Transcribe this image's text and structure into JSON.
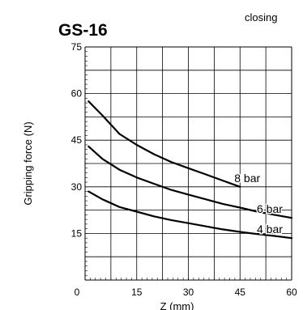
{
  "chart_data": {
    "type": "line",
    "title": "GS-16",
    "subtitle": "closing",
    "xlabel": "Z (mm)",
    "ylabel": "Gripping force (N)",
    "xlim": [
      0,
      60
    ],
    "ylim": [
      0,
      75
    ],
    "x_ticks": [
      0,
      15,
      30,
      45,
      60
    ],
    "y_ticks": [
      15,
      30,
      45,
      60,
      75
    ],
    "grid": true,
    "series": [
      {
        "name": "8 bar",
        "points": [
          [
            1,
            57.5
          ],
          [
            5,
            53
          ],
          [
            10,
            47
          ],
          [
            15,
            43.5
          ],
          [
            20,
            40.5
          ],
          [
            25,
            38
          ],
          [
            30,
            36
          ],
          [
            35,
            34
          ],
          [
            40,
            32
          ],
          [
            45,
            30
          ]
        ],
        "color": "#000000"
      },
      {
        "name": "6 bar",
        "points": [
          [
            1,
            43
          ],
          [
            5,
            39
          ],
          [
            10,
            35.5
          ],
          [
            15,
            33
          ],
          [
            20,
            31
          ],
          [
            25,
            29
          ],
          [
            30,
            27.5
          ],
          [
            35,
            26
          ],
          [
            40,
            24.5
          ],
          [
            45,
            23.3
          ],
          [
            50,
            22
          ],
          [
            55,
            21
          ],
          [
            60,
            20
          ]
        ],
        "color": "#000000"
      },
      {
        "name": "4 bar",
        "points": [
          [
            1,
            28.5
          ],
          [
            5,
            26
          ],
          [
            10,
            23.5
          ],
          [
            15,
            22
          ],
          [
            20,
            20.5
          ],
          [
            25,
            19.3
          ],
          [
            30,
            18.3
          ],
          [
            35,
            17.3
          ],
          [
            40,
            16.3
          ],
          [
            45,
            15.5
          ],
          [
            50,
            14.8
          ],
          [
            55,
            14.2
          ],
          [
            60,
            13.5
          ]
        ],
        "color": "#000000"
      }
    ]
  }
}
